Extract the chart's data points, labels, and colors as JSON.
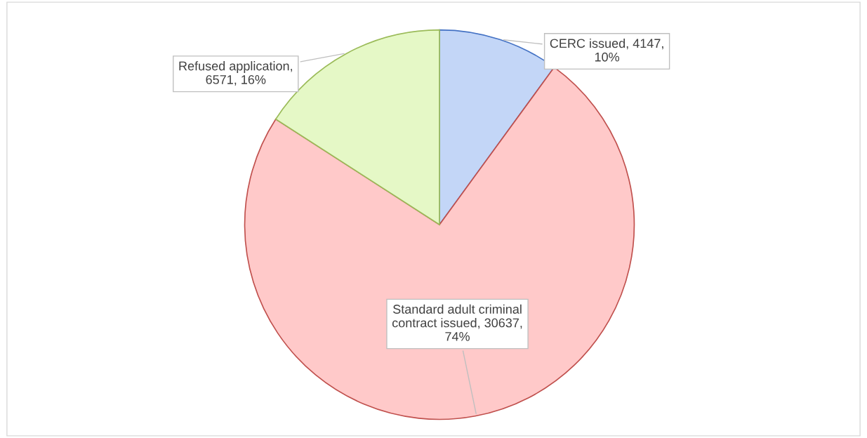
{
  "chart_data": {
    "type": "pie",
    "categories": [
      "CERC issued",
      "Standard adult criminal contract issued",
      "Refused application"
    ],
    "values": [
      4147,
      30637,
      6571
    ],
    "value_labels": [
      ", 4147, 10%",
      ", 30637, 74%",
      ", 6571, 16%"
    ],
    "colors": [
      "#c3d6f7",
      "#ffc9c9",
      "#e5f8c6"
    ],
    "legend": false
  }
}
